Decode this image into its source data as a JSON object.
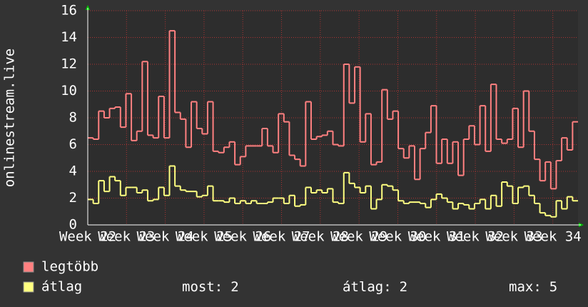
{
  "chart_data": {
    "type": "step",
    "ylabel": "onlinestream.live",
    "ylim": [
      0,
      16
    ],
    "yticks": [
      0,
      2,
      4,
      6,
      8,
      10,
      12,
      14,
      16
    ],
    "xlim": [
      22,
      34.65
    ],
    "xticks": [
      {
        "value": 22,
        "label": "Week 22"
      },
      {
        "value": 23,
        "label": "Week 23"
      },
      {
        "value": 24,
        "label": "Week 24"
      },
      {
        "value": 25,
        "label": "Week 25"
      },
      {
        "value": 26,
        "label": "Week 26"
      },
      {
        "value": 27,
        "label": "Week 27"
      },
      {
        "value": 28,
        "label": "Week 28"
      },
      {
        "value": 29,
        "label": "Week 29"
      },
      {
        "value": 30,
        "label": "Week 30"
      },
      {
        "value": 31,
        "label": "Week 31"
      },
      {
        "value": 32,
        "label": "Week 32"
      },
      {
        "value": 33,
        "label": "Week 33"
      },
      {
        "value": 34,
        "label": "Week 34"
      }
    ],
    "grid": true,
    "series": [
      {
        "name": "legtöbb",
        "color": "#ff8080",
        "values": [
          6.5,
          6.4,
          8.5,
          8.0,
          8.7,
          8.8,
          7.3,
          9.8,
          6.3,
          7.0,
          12.2,
          6.7,
          6.5,
          9.6,
          6.5,
          14.5,
          8.4,
          7.9,
          5.8,
          9.2,
          7.2,
          6.8,
          9.2,
          5.5,
          5.4,
          5.8,
          6.2,
          4.5,
          5.1,
          5.9,
          5.9,
          5.9,
          7.2,
          5.9,
          5.4,
          8.3,
          7.7,
          5.2,
          4.9,
          4.4,
          9.2,
          6.4,
          6.6,
          6.7,
          7.0,
          6.0,
          5.9,
          12.0,
          9.1,
          11.8,
          6.2,
          8.3,
          4.5,
          4.7,
          10.1,
          7.9,
          8.5,
          5.7,
          5.0,
          5.9,
          3.4,
          5.7,
          6.9,
          8.9,
          4.6,
          6.4,
          4.6,
          6.2,
          3.7,
          6.4,
          7.4,
          6.0,
          8.9,
          5.5,
          10.5,
          6.4,
          6.1,
          6.4,
          8.7,
          5.8,
          10.0,
          7.0,
          4.9,
          3.3,
          4.7,
          2.7,
          4.8,
          6.5,
          5.6,
          7.7
        ]
      },
      {
        "name": "átlag",
        "color": "#ffff80",
        "values": [
          1.9,
          1.6,
          3.3,
          2.5,
          3.6,
          3.3,
          2.2,
          2.8,
          2.8,
          2.4,
          2.6,
          1.8,
          1.9,
          2.8,
          2.2,
          4.4,
          2.9,
          2.6,
          2.5,
          2.5,
          2.1,
          2.2,
          2.9,
          1.8,
          1.8,
          1.7,
          2.0,
          1.6,
          1.8,
          1.6,
          1.8,
          1.6,
          1.6,
          1.7,
          2.0,
          2.0,
          1.6,
          2.2,
          1.4,
          1.5,
          2.8,
          2.4,
          2.6,
          2.4,
          2.7,
          1.7,
          1.6,
          3.9,
          3.1,
          2.8,
          2.4,
          2.9,
          1.2,
          1.9,
          3.0,
          2.9,
          2.6,
          1.8,
          1.6,
          1.7,
          1.7,
          1.6,
          1.3,
          1.9,
          2.3,
          2.0,
          1.7,
          1.2,
          1.6,
          1.5,
          1.2,
          1.6,
          1.9,
          1.2,
          2.2,
          1.4,
          3.2,
          2.9,
          1.6,
          2.8,
          2.9,
          2.2,
          1.6,
          0.9,
          0.7,
          0.6,
          1.8,
          1.2,
          2.1,
          1.8
        ]
      }
    ],
    "stats": [
      {
        "label": "most:",
        "value": 2
      },
      {
        "label": "átlag:",
        "value": 2
      },
      {
        "label": "max:",
        "value": 5
      }
    ]
  }
}
